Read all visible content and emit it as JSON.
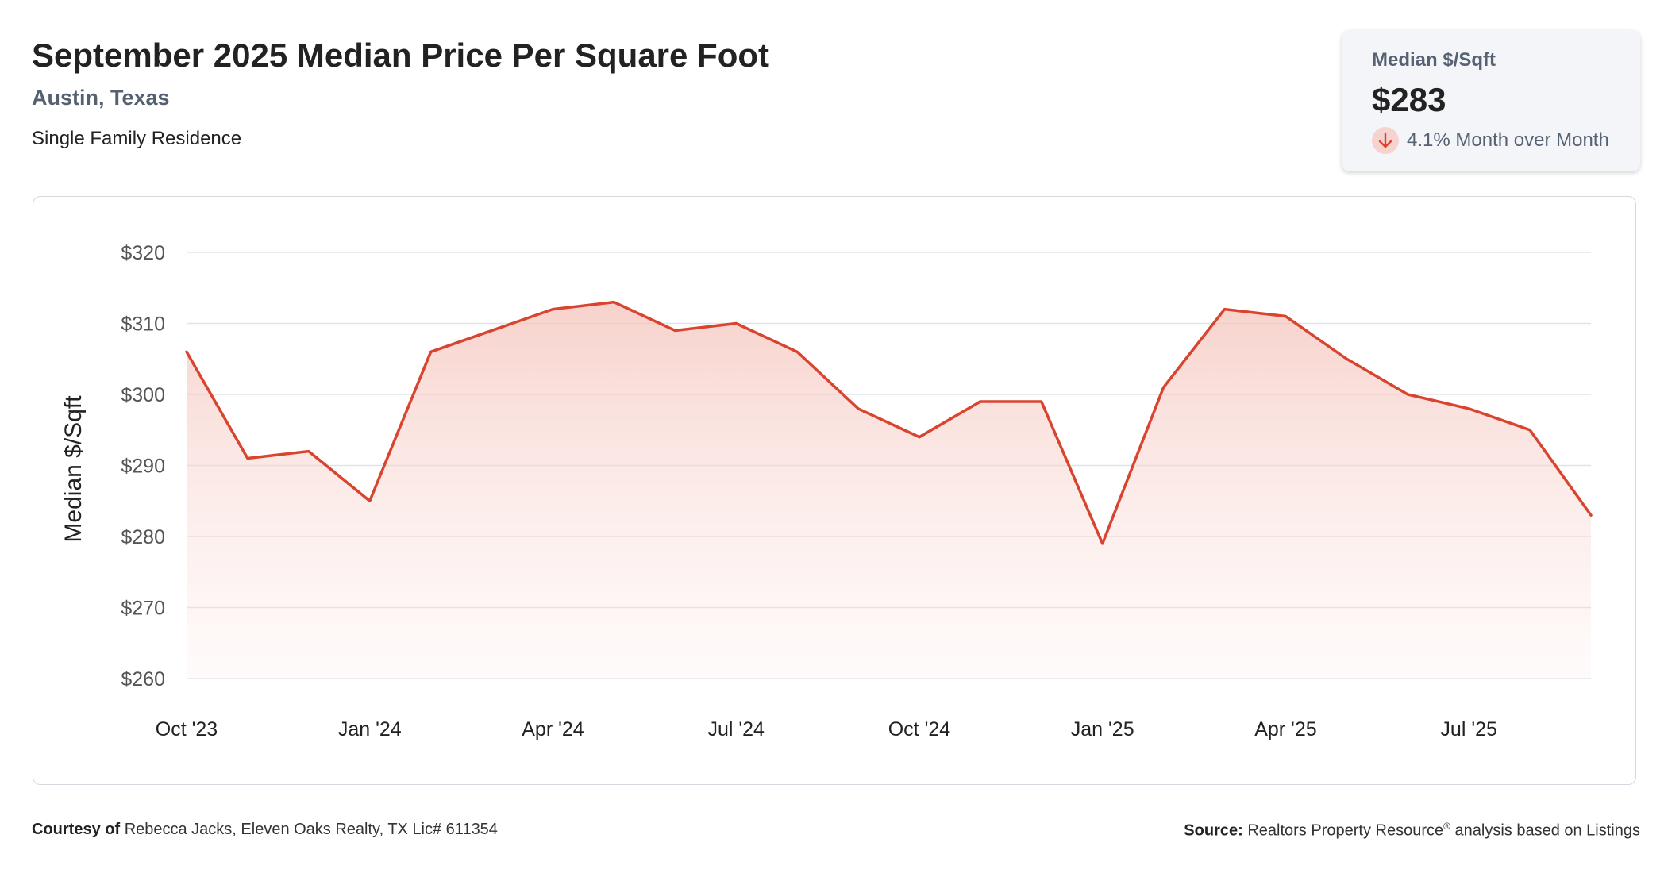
{
  "header": {
    "title": "September 2025 Median Price Per Square Foot",
    "location": "Austin, Texas",
    "property_type": "Single Family Residence"
  },
  "stat_card": {
    "label": "Median $/Sqft",
    "value": "$283",
    "change": "4.1% Month over Month",
    "direction": "down"
  },
  "footer": {
    "courtesy_label": "Courtesy of",
    "courtesy_text": "Rebecca Jacks, Eleven Oaks Realty, TX Lic# 611354",
    "source_label": "Source:",
    "source_text_a": "Realtors Property Resource",
    "source_sup": "®",
    "source_text_b": "analysis based on Listings"
  },
  "colors": {
    "line": "#d9442f",
    "fill": "#f5c5bd",
    "grid": "#dfe3e8",
    "axis_text": "#555555"
  },
  "chart_data": {
    "type": "area",
    "ylabel": "Median $/Sqft",
    "ylim": [
      260,
      320
    ],
    "y_ticks": [
      320,
      310,
      300,
      290,
      280,
      270,
      260
    ],
    "y_tick_prefix": "$",
    "x_tick_labels": [
      "Oct '23",
      "Jan '24",
      "Apr '24",
      "Jul '24",
      "Oct '24",
      "Jan '25",
      "Apr '25",
      "Jul '25"
    ],
    "x_tick_index": [
      0,
      3,
      6,
      9,
      12,
      15,
      18,
      21
    ],
    "grid": true,
    "series": [
      {
        "x": [
          "Oct 2023",
          "Nov 2023",
          "Dec 2023",
          "Jan 2024",
          "Feb 2024",
          "Mar 2024",
          "Apr 2024",
          "May 2024",
          "Jun 2024",
          "Jul 2024",
          "Aug 2024",
          "Sep 2024",
          "Oct 2024",
          "Nov 2024",
          "Dec 2024",
          "Jan 2025",
          "Feb 2025",
          "Mar 2025",
          "Apr 2025",
          "May 2025",
          "Jun 2025",
          "Jul 2025",
          "Aug 2025",
          "Sep 2025"
        ],
        "values": [
          306,
          291,
          292,
          285,
          306,
          309,
          312,
          313,
          309,
          310,
          306,
          298,
          294,
          299,
          299,
          279,
          301,
          312,
          311,
          305,
          300,
          298,
          295,
          283
        ]
      }
    ]
  }
}
